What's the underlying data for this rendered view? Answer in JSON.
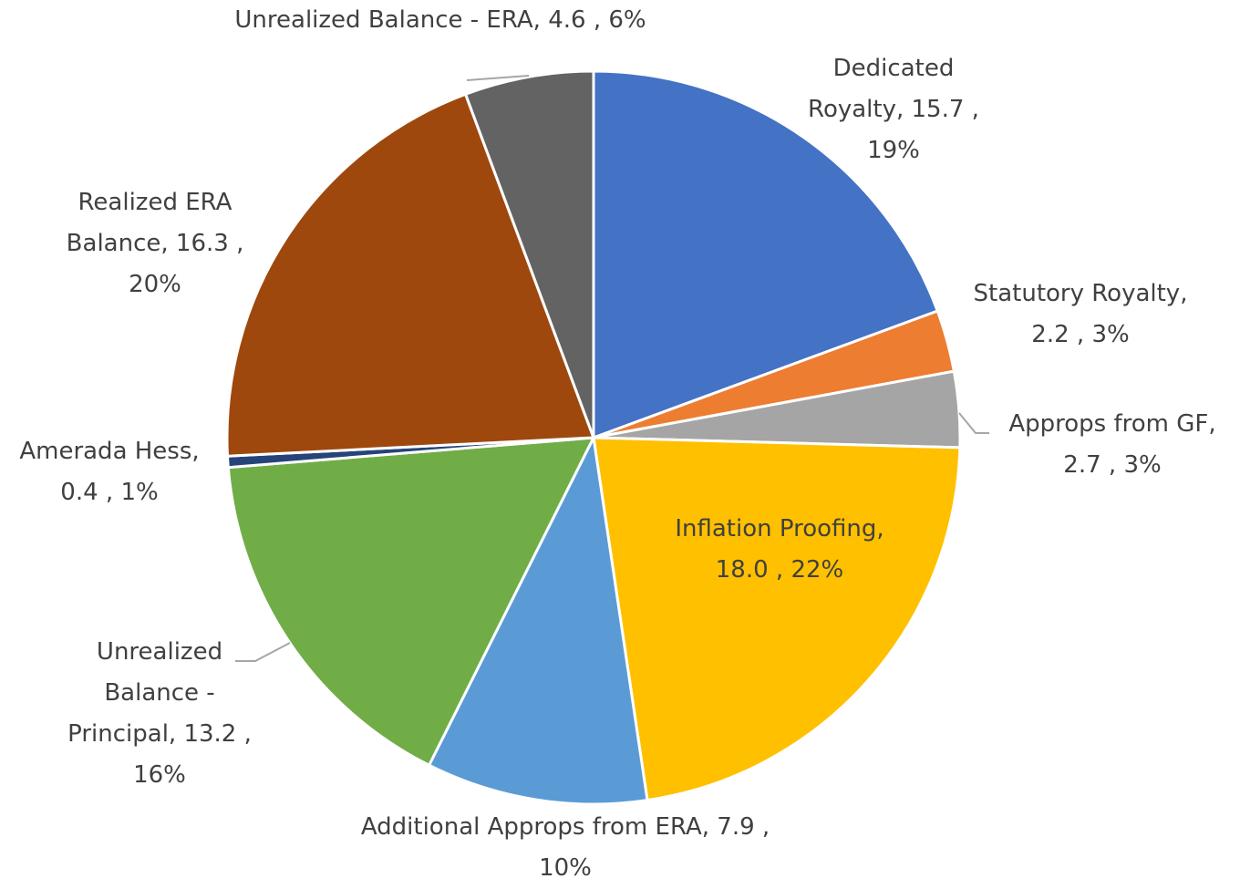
{
  "chart_data": {
    "type": "pie",
    "categories": [
      "Dedicated Royalty",
      "Statutory Royalty",
      "Approps from GF",
      "Inflation Proofing",
      "Additional Approps from ERA",
      "Unrealized Balance - Principal",
      "Amerada Hess",
      "Realized ERA Balance",
      "Unrealized Balance - ERA"
    ],
    "values": [
      15.7,
      2.2,
      2.7,
      18.0,
      7.9,
      13.2,
      0.4,
      16.3,
      4.6
    ],
    "value_labels": [
      "15.7",
      "2.2",
      "2.7",
      "18.0",
      "7.9",
      "13.2",
      "0.4",
      "16.3",
      "4.6"
    ],
    "percents": [
      19,
      3,
      3,
      22,
      10,
      16,
      1,
      20,
      6
    ],
    "percent_labels": [
      "19%",
      "3%",
      "3%",
      "22%",
      "10%",
      "16%",
      "1%",
      "20%",
      "6%"
    ],
    "label_separator": ",",
    "colors": [
      "#4472c4",
      "#ed7d31",
      "#a5a5a5",
      "#ffc000",
      "#5b9bd5",
      "#70ad47",
      "#264478",
      "#9e480e",
      "#636363"
    ]
  }
}
